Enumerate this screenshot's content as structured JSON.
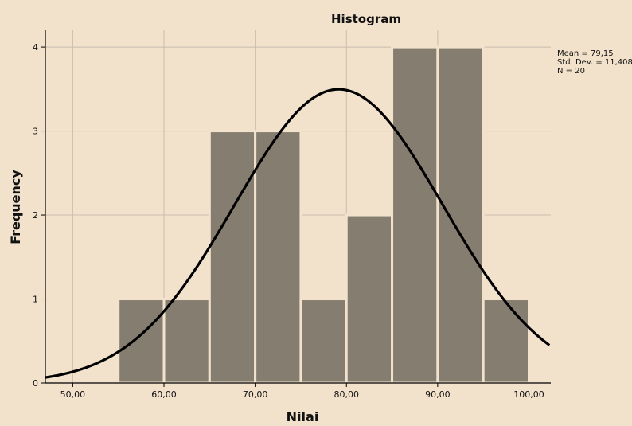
{
  "chart_data": {
    "type": "bar",
    "title": "Histogram",
    "xlabel": "Nilai",
    "ylabel": "Frequency",
    "xlim": [
      47,
      102.4
    ],
    "ylim": [
      0,
      4.2
    ],
    "grid": true,
    "x_ticks": [
      "50,00",
      "60,00",
      "70,00",
      "80,00",
      "90,00",
      "100,00"
    ],
    "y_ticks": [
      "0",
      "1",
      "2",
      "3",
      "4"
    ],
    "bins": [
      {
        "from": 55,
        "to": 60,
        "count": 1
      },
      {
        "from": 60,
        "to": 65,
        "count": 1
      },
      {
        "from": 65,
        "to": 70,
        "count": 3
      },
      {
        "from": 70,
        "to": 75,
        "count": 3
      },
      {
        "from": 75,
        "to": 80,
        "count": 1
      },
      {
        "from": 80,
        "to": 85,
        "count": 2
      },
      {
        "from": 85,
        "to": 90,
        "count": 4
      },
      {
        "from": 90,
        "to": 95,
        "count": 4
      },
      {
        "from": 95,
        "to": 100,
        "count": 1
      }
    ],
    "normal_curve": {
      "mean": 79.15,
      "std_dev": 11.408,
      "n": 20,
      "bin_width": 5
    },
    "stats_labels": [
      "Mean = 79,15",
      "Std. Dev. = 11,408",
      "N = 20"
    ],
    "colors": {
      "background": "#f2e2cc",
      "bar_fill": "#857d70",
      "bar_edge": "#f2e2cc",
      "grid": "#c9bdad",
      "curve": "#000000"
    }
  }
}
